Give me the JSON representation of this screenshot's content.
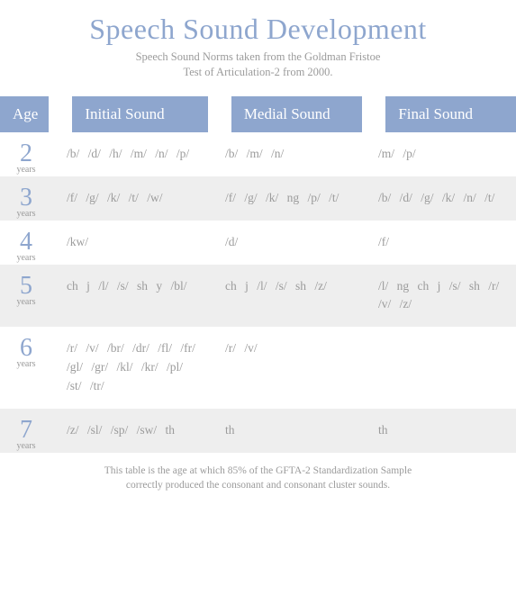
{
  "colors": {
    "accent": "#8ea6ce",
    "text_gray": "#9b9b9b",
    "row_alt_bg": "#eeeeee",
    "header_gap": "#ffffff"
  },
  "title": "Speech Sound Development",
  "subtitle_line1": "Speech Sound Norms taken from the Goldman Fristoe",
  "subtitle_line2": "Test of Articulation-2 from 2000.",
  "headers": {
    "age": "Age",
    "initial": "Initial Sound",
    "medial": "Medial Sound",
    "final": "Final Sound"
  },
  "age_unit": "years",
  "rows": [
    {
      "age": "2",
      "initial": "/b/ /d/ /h/ /m/ /n/ /p/",
      "medial": "/b/ /m/ /n/",
      "final": "/m/ /p/"
    },
    {
      "age": "3",
      "initial": "/f/ /g/ /k/ /t/ /w/",
      "medial": "/f/ /g/ /k/ ng /p/ /t/",
      "final": "/b/ /d/ /g/ /k/ /n/ /t/"
    },
    {
      "age": "4",
      "initial": "/kw/",
      "medial": "/d/",
      "final": "/f/"
    },
    {
      "age": "5",
      "initial": "ch j /l/ /s/ sh y /bl/",
      "medial": "ch j /l/ /s/ sh /z/",
      "final": "/l/ ng ch j /s/ sh /r/ /v/ /z/"
    },
    {
      "age": "6",
      "initial": "/r/ /v/ /br/ /dr/ /fl/ /fr/ /gl/ /gr/ /kl/ /kr/ /pl/ /st/ /tr/",
      "medial": "/r/ /v/",
      "final": ""
    },
    {
      "age": "7",
      "initial": "/z/ /sl/ /sp/ /sw/ th",
      "medial": "th",
      "final": "th"
    }
  ],
  "footnote_line1": "This table is the age at which 85% of the GFTA-2 Standardization Sample",
  "footnote_line2": "correctly produced the consonant and consonant cluster sounds."
}
